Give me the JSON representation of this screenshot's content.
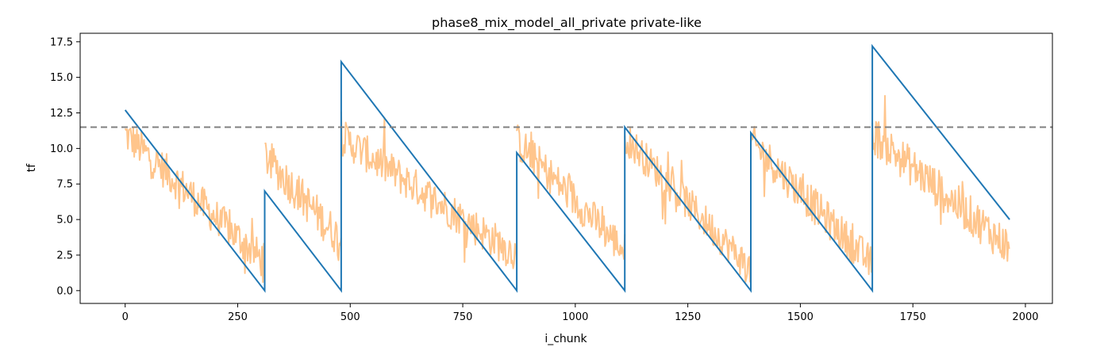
{
  "chart_data": {
    "type": "line",
    "title": "phase8_mix_model_all_private private-like",
    "xlabel": "i_chunk",
    "ylabel": "tf",
    "xlim": [
      -100,
      2060
    ],
    "ylim": [
      -0.9,
      18.1
    ],
    "x_ticks": [
      0,
      250,
      500,
      750,
      1000,
      1250,
      1500,
      1750,
      2000
    ],
    "y_ticks": [
      0.0,
      2.5,
      5.0,
      7.5,
      10.0,
      12.5,
      15.0,
      17.5
    ],
    "x_tick_labels": [
      "0",
      "250",
      "500",
      "750",
      "1000",
      "1250",
      "1500",
      "1750",
      "2000"
    ],
    "y_tick_labels": [
      "0.0",
      "2.5",
      "5.0",
      "7.5",
      "10.0",
      "12.5",
      "15.0",
      "17.5"
    ],
    "grid": false,
    "threshold": {
      "y": 11.5,
      "style": "dashed",
      "color": "#808080"
    },
    "series": [
      {
        "color": "#1f77b4",
        "style": "sawtooth",
        "x": [
          0,
          310,
          310,
          480,
          480,
          870,
          870,
          1110,
          1110,
          1390,
          1390,
          1660,
          1660,
          1965
        ],
        "y": [
          12.7,
          0.0,
          7.0,
          0.0,
          16.1,
          0.0,
          9.7,
          0.0,
          11.5,
          0.0,
          11.1,
          0.0,
          17.2,
          5.0
        ]
      },
      {
        "color": "#ffbb78",
        "alpha": 0.85,
        "style": "noisy",
        "segments": [
          {
            "x_start": 0,
            "x_end": 310,
            "y_start": 11.0,
            "y_end": 2.0,
            "noise": 1.3
          },
          {
            "x_start": 310,
            "x_end": 480,
            "y_start": 9.5,
            "y_end": 3.5,
            "noise": 1.4
          },
          {
            "x_start": 480,
            "x_end": 870,
            "y_start": 10.8,
            "y_end": 2.5,
            "noise": 1.3
          },
          {
            "x_start": 870,
            "x_end": 1110,
            "y_start": 10.5,
            "y_end": 2.8,
            "noise": 1.3
          },
          {
            "x_start": 1110,
            "x_end": 1390,
            "y_start": 10.8,
            "y_end": 1.5,
            "noise": 1.2
          },
          {
            "x_start": 1390,
            "x_end": 1660,
            "y_start": 10.5,
            "y_end": 1.8,
            "noise": 1.3
          },
          {
            "x_start": 1660,
            "x_end": 1965,
            "y_start": 11.0,
            "y_end": 3.0,
            "noise": 1.4
          }
        ]
      }
    ]
  }
}
